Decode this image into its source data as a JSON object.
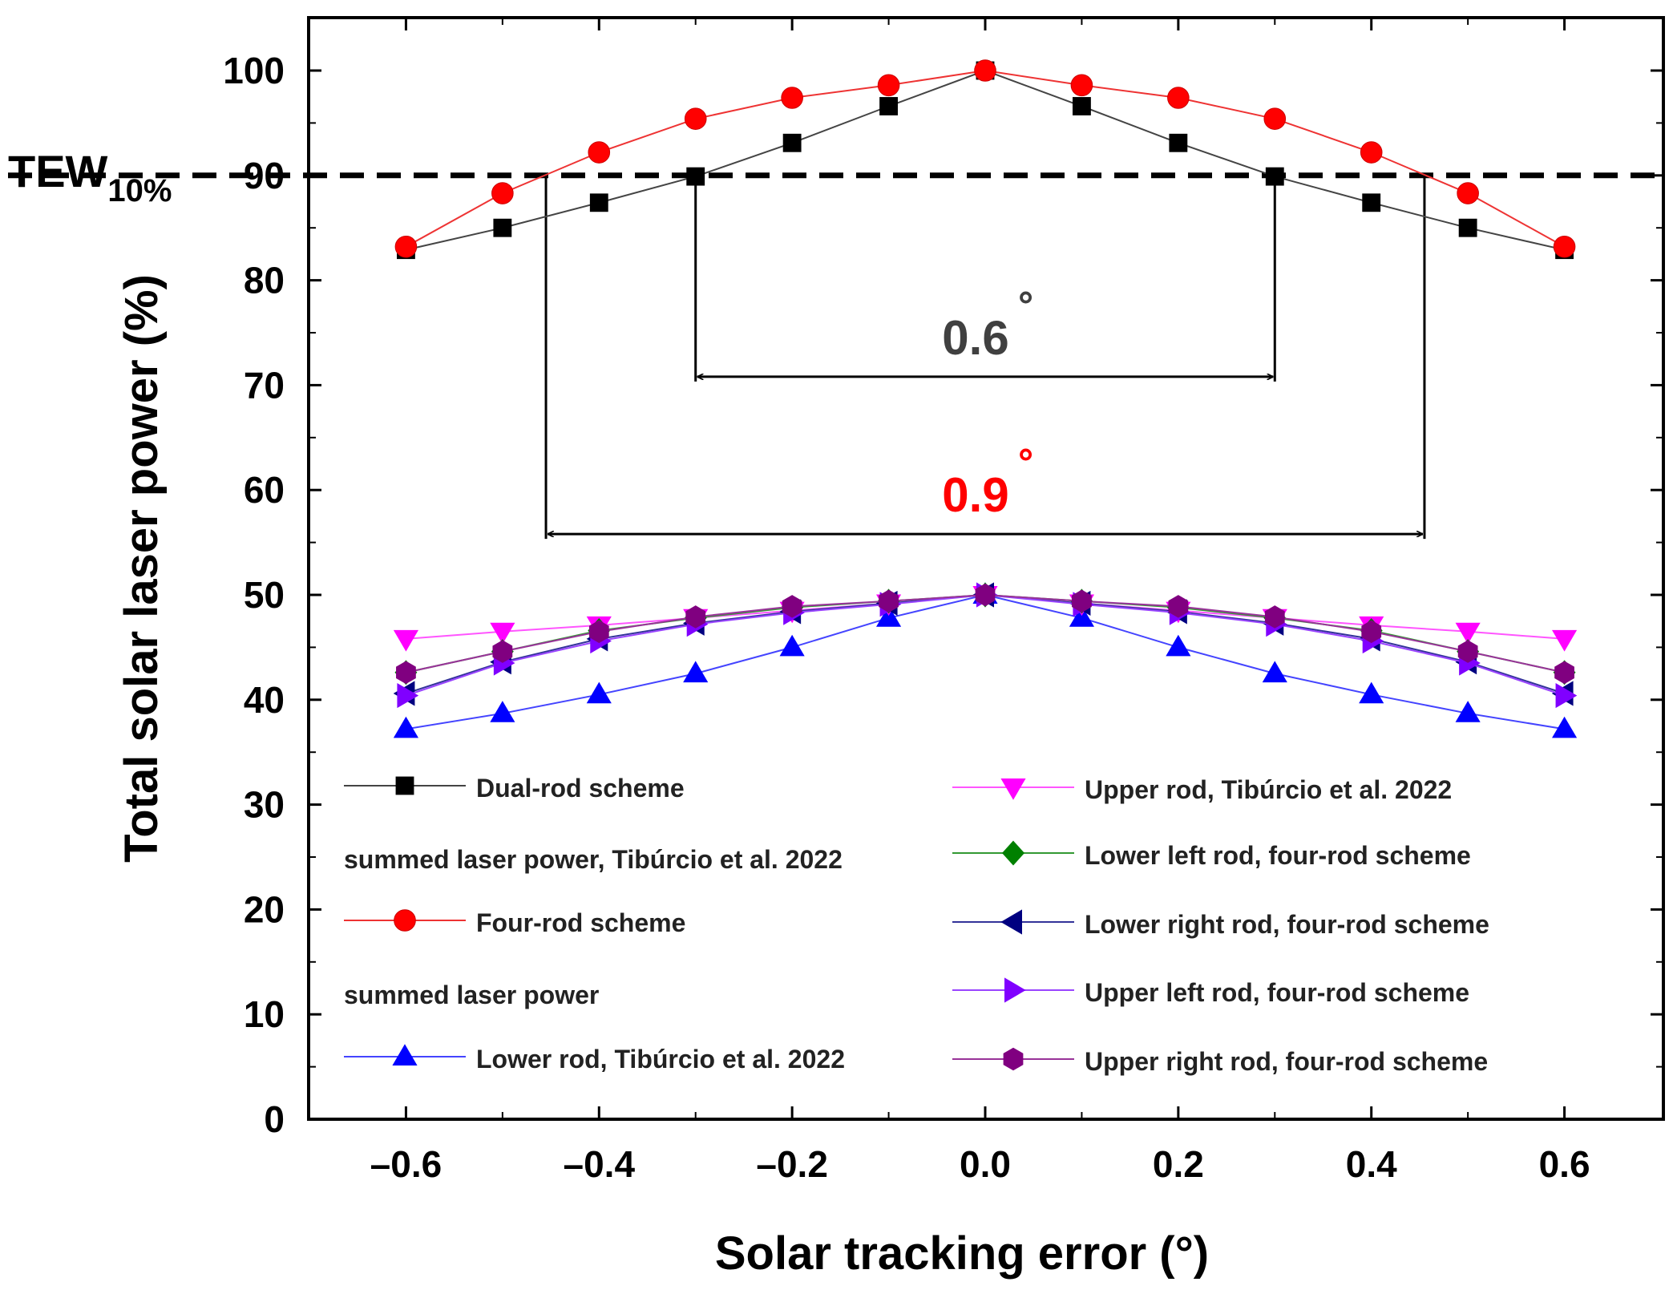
{
  "chart_data": {
    "type": "line",
    "title": "",
    "xlabel": "Solar tracking error (°)",
    "ylabel": "Total solar laser power (%)",
    "xlim": [
      -0.7,
      0.7
    ],
    "ylim": [
      0,
      105
    ],
    "x": [
      -0.6,
      -0.5,
      -0.4,
      -0.3,
      -0.2,
      -0.1,
      0.0,
      0.1,
      0.2,
      0.3,
      0.4,
      0.5,
      0.6
    ],
    "x_ticks": [
      -0.6,
      -0.4,
      -0.2,
      0.0,
      0.2,
      0.4,
      0.6
    ],
    "x_tick_labels": [
      "–0.6",
      "–0.4",
      "–0.2",
      "0.0",
      "0.2",
      "0.4",
      "0.6"
    ],
    "y_ticks": [
      0,
      10,
      20,
      30,
      40,
      50,
      60,
      70,
      80,
      90,
      100
    ],
    "y_tick_labels": [
      "0",
      "10",
      "20",
      "30",
      "40",
      "50",
      "60",
      "70",
      "80",
      "90",
      "100"
    ],
    "grid": false,
    "series": [
      {
        "name": "Dual-rod scheme",
        "legend_extra": "summed laser power, Tibúrcio et al. 2022",
        "line_color": "#444444",
        "marker": "square",
        "marker_color": "#000000",
        "values": [
          82.9,
          85.0,
          87.4,
          89.9,
          93.1,
          96.6,
          100,
          96.6,
          93.1,
          89.9,
          87.4,
          85.0,
          82.9
        ]
      },
      {
        "name": "Four-rod scheme",
        "legend_extra": "summed laser power",
        "line_color": "#ee3333",
        "marker": "circle",
        "marker_color": "#ff0000",
        "values": [
          83.2,
          88.3,
          92.2,
          95.4,
          97.4,
          98.6,
          100,
          98.6,
          97.4,
          95.4,
          92.2,
          88.3,
          83.2
        ]
      },
      {
        "name": "Lower rod, Tibúrcio et al. 2022",
        "line_color": "#4444ff",
        "marker": "triangle-up",
        "marker_color": "#0000ff",
        "values": [
          37.2,
          38.7,
          40.5,
          42.5,
          45.0,
          47.8,
          50,
          47.8,
          45.0,
          42.5,
          40.5,
          38.7,
          37.2
        ]
      },
      {
        "name": "Upper rod, Tibúrcio et al. 2022",
        "line_color": "#ff55ff",
        "marker": "triangle-down",
        "marker_color": "#ff00ff",
        "values": [
          45.8,
          46.5,
          47.1,
          47.8,
          48.5,
          49.2,
          50,
          49.2,
          48.5,
          47.8,
          47.1,
          46.5,
          45.8
        ]
      },
      {
        "name": "Lower left rod, four-rod scheme",
        "line_color": "#339933",
        "marker": "diamond",
        "marker_color": "#008000",
        "values": [
          42.6,
          44.6,
          46.6,
          47.8,
          48.8,
          49.4,
          50,
          49.4,
          48.8,
          47.8,
          46.6,
          44.6,
          42.6
        ]
      },
      {
        "name": "Lower right rod, four-rod scheme",
        "line_color": "#333399",
        "marker": "triangle-left",
        "marker_color": "#000080",
        "values": [
          40.6,
          43.6,
          45.8,
          47.3,
          48.4,
          49.2,
          50,
          49.2,
          48.4,
          47.3,
          45.8,
          43.6,
          40.6
        ]
      },
      {
        "name": "Upper left rod, four-rod scheme",
        "line_color": "#9944ff",
        "marker": "triangle-right",
        "marker_color": "#8000ff",
        "values": [
          40.4,
          43.5,
          45.6,
          47.2,
          48.3,
          49.1,
          50,
          49.1,
          48.3,
          47.2,
          45.6,
          43.5,
          40.4
        ]
      },
      {
        "name": "Upper right rod, four-rod scheme",
        "line_color": "#993399",
        "marker": "hexagon",
        "marker_color": "#800080",
        "values": [
          42.6,
          44.6,
          46.5,
          47.9,
          48.9,
          49.4,
          50,
          49.4,
          48.9,
          47.9,
          46.5,
          44.6,
          42.6
        ]
      }
    ],
    "annotations": {
      "threshold": {
        "label_main": "TEW",
        "label_sub": "10%",
        "y": 90
      },
      "width_dual": {
        "label": "0.6",
        "degree": "˚",
        "x_from": -0.3,
        "x_to": 0.3,
        "y_arrow": 70.8,
        "y_top": 90,
        "color": "#404040"
      },
      "width_four": {
        "label": "0.9",
        "degree": "˚",
        "x_from": -0.455,
        "x_to": 0.455,
        "y_arrow": 55.8,
        "y_top": 90,
        "color": "#ff0000"
      }
    }
  }
}
